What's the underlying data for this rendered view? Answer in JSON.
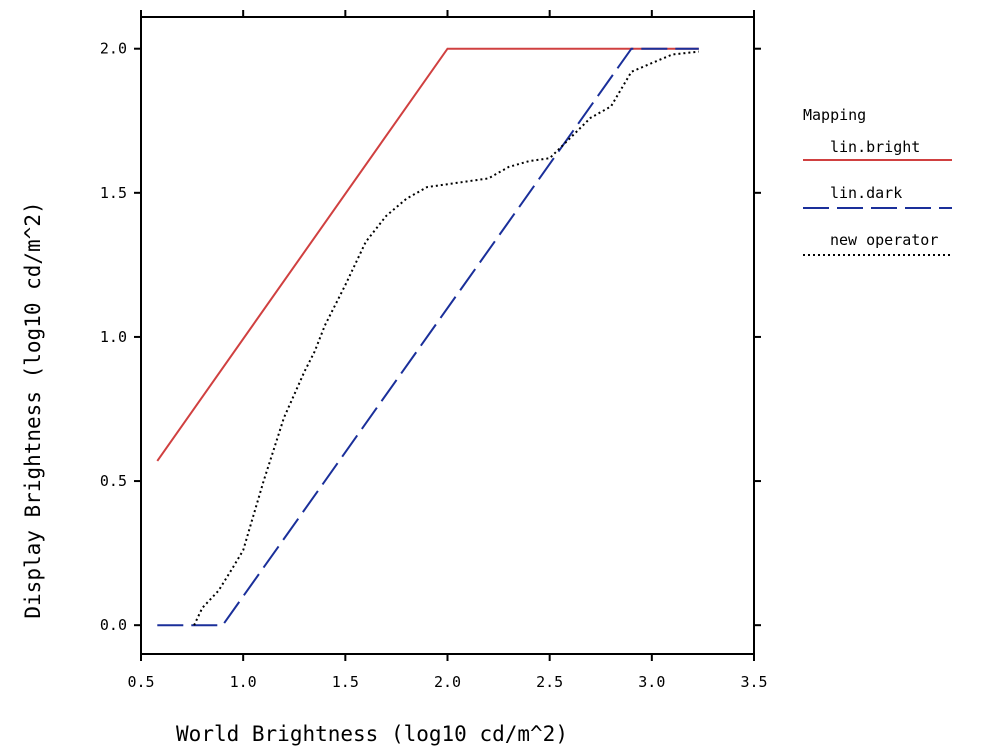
{
  "chart_data": {
    "type": "line",
    "xlabel": "World Brightness (log10 cd/m^2)",
    "ylabel": "Display Brightness (log10 cd/m^2)",
    "xlim": [
      0.5,
      3.5
    ],
    "ylim": [
      -0.1,
      2.11
    ],
    "x_ticks": [
      0.5,
      1.0,
      1.5,
      2.0,
      2.5,
      3.0,
      3.5
    ],
    "y_ticks": [
      0.0,
      0.5,
      1.0,
      1.5,
      2.0
    ],
    "x_tick_labels": [
      "0.5",
      "1.0",
      "1.5",
      "2.0",
      "2.5",
      "3.0",
      "3.5"
    ],
    "y_tick_labels": [
      "0.0",
      "0.5",
      "1.0",
      "1.5",
      "2.0"
    ],
    "grid": false,
    "legend": {
      "title": "Mapping",
      "position": "right"
    },
    "series": [
      {
        "name": "lin.bright",
        "color": "#d04040",
        "dash": "solid",
        "x": [
          0.58,
          2.0,
          3.23
        ],
        "y": [
          0.57,
          2.0,
          2.0
        ]
      },
      {
        "name": "lin.dark",
        "color": "#1a2f9a",
        "dash": "dashed",
        "x": [
          0.58,
          0.9,
          2.9,
          3.23
        ],
        "y": [
          0.0,
          0.0,
          2.0,
          2.0
        ]
      },
      {
        "name": "new operator",
        "color": "#000000",
        "dash": "dotted",
        "x": [
          0.76,
          0.8,
          0.88,
          0.95,
          1.0,
          1.05,
          1.1,
          1.2,
          1.3,
          1.35,
          1.4,
          1.5,
          1.6,
          1.7,
          1.8,
          1.9,
          2.0,
          2.1,
          2.2,
          2.3,
          2.4,
          2.5,
          2.6,
          2.7,
          2.8,
          2.9,
          3.0,
          3.1,
          3.23
        ],
        "y": [
          0.0,
          0.06,
          0.12,
          0.2,
          0.26,
          0.38,
          0.5,
          0.72,
          0.88,
          0.95,
          1.04,
          1.18,
          1.33,
          1.42,
          1.48,
          1.52,
          1.53,
          1.54,
          1.55,
          1.59,
          1.61,
          1.62,
          1.69,
          1.76,
          1.8,
          1.92,
          1.95,
          1.98,
          1.99
        ]
      }
    ]
  }
}
